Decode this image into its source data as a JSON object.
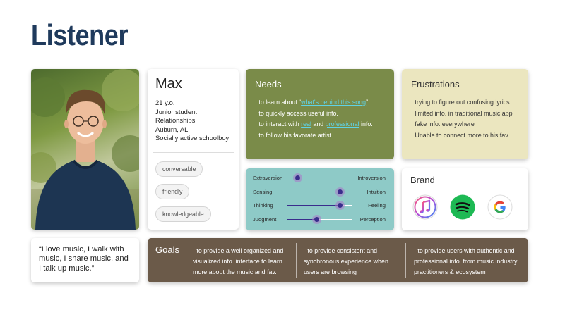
{
  "page_title": "Listener",
  "profile": {
    "name": "Max",
    "info": [
      "21 y.o.",
      "Junior student",
      "Relationships",
      "Auburn, AL",
      "Socially active schoolboy"
    ],
    "tags": [
      "conversable",
      "friendly",
      "knowledgeable"
    ]
  },
  "needs": {
    "title": "Needs",
    "items": [
      {
        "pre": "· to learn about “",
        "link": "what's behind this song",
        "post": "”"
      },
      {
        "pre": "· to quickly access useful info.",
        "link": "",
        "post": ""
      },
      {
        "pre": "· to interact with ",
        "link": "real",
        "mid": " and ",
        "link2": "professional",
        "post": " info."
      },
      {
        "pre": "· to follow his favorate artist.",
        "link": "",
        "post": ""
      }
    ],
    "link_color": "#5fd3e6"
  },
  "frustrations": {
    "title": "Frustrations",
    "items": [
      "· trying to figure out confusing lyrics",
      "· limited info. in traditional music app",
      "· fake info. everywhere",
      "· Unable to connect more to his fav."
    ]
  },
  "personality": [
    {
      "left": "Extraversion",
      "right": "Introversion",
      "value": 0.17
    },
    {
      "left": "Sensing",
      "right": "Intuition",
      "value": 0.82
    },
    {
      "left": "Thinking",
      "right": "Feeling",
      "value": 0.82
    },
    {
      "left": "Judgment",
      "right": "Perception",
      "value": 0.46
    }
  ],
  "brand": {
    "title": "Brand",
    "icons": [
      "itunes-icon",
      "spotify-icon",
      "google-icon"
    ]
  },
  "quote": "“I love music, I walk with music, I share music, and I talk up music.”",
  "goals": {
    "title": "Goals",
    "items": [
      "· to provide a well organized and visualized info. interface to learn more about the music and fav.",
      "· to provide consistent and synchronous experience when users are browsing",
      "· to provide users with authentic and professional info. from music industry practitioners & ecosystem"
    ]
  },
  "colors": {
    "title": "#1f3a5c",
    "needs_bg": "#7a8b49",
    "frustrations_bg": "#ebe6bf",
    "personality_bg": "#8ecac7",
    "goals_bg": "#6b5a49",
    "slider": "#3a2d8c"
  }
}
